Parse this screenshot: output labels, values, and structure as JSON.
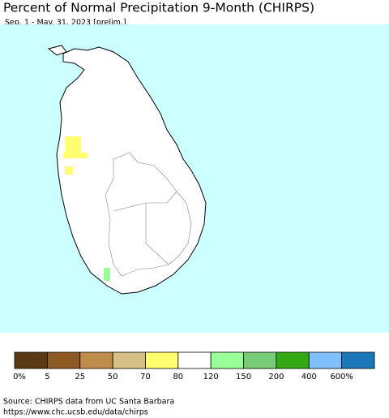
{
  "title": "Percent of Normal Precipitation 9-Month (CHIRPS)",
  "subtitle": "Sep. 1 - May. 31, 2023 [prelim.]",
  "legend": {
    "colors": [
      "#5a3a12",
      "#8c5a22",
      "#c08c4a",
      "#d4bf86",
      "#ffff70",
      "#ffffff",
      "#99ff99",
      "#77cc77",
      "#33aa11",
      "#80c0ff",
      "#1a78b8"
    ],
    "labels": [
      "0%",
      "5",
      "25",
      "50",
      "70",
      "80",
      "120",
      "150",
      "200",
      "400",
      "600%"
    ]
  },
  "source": [
    "Source: CHIRPS data from UC Santa Barbara",
    "https://www.chc.ucsb.edu/data/chirps"
  ]
}
